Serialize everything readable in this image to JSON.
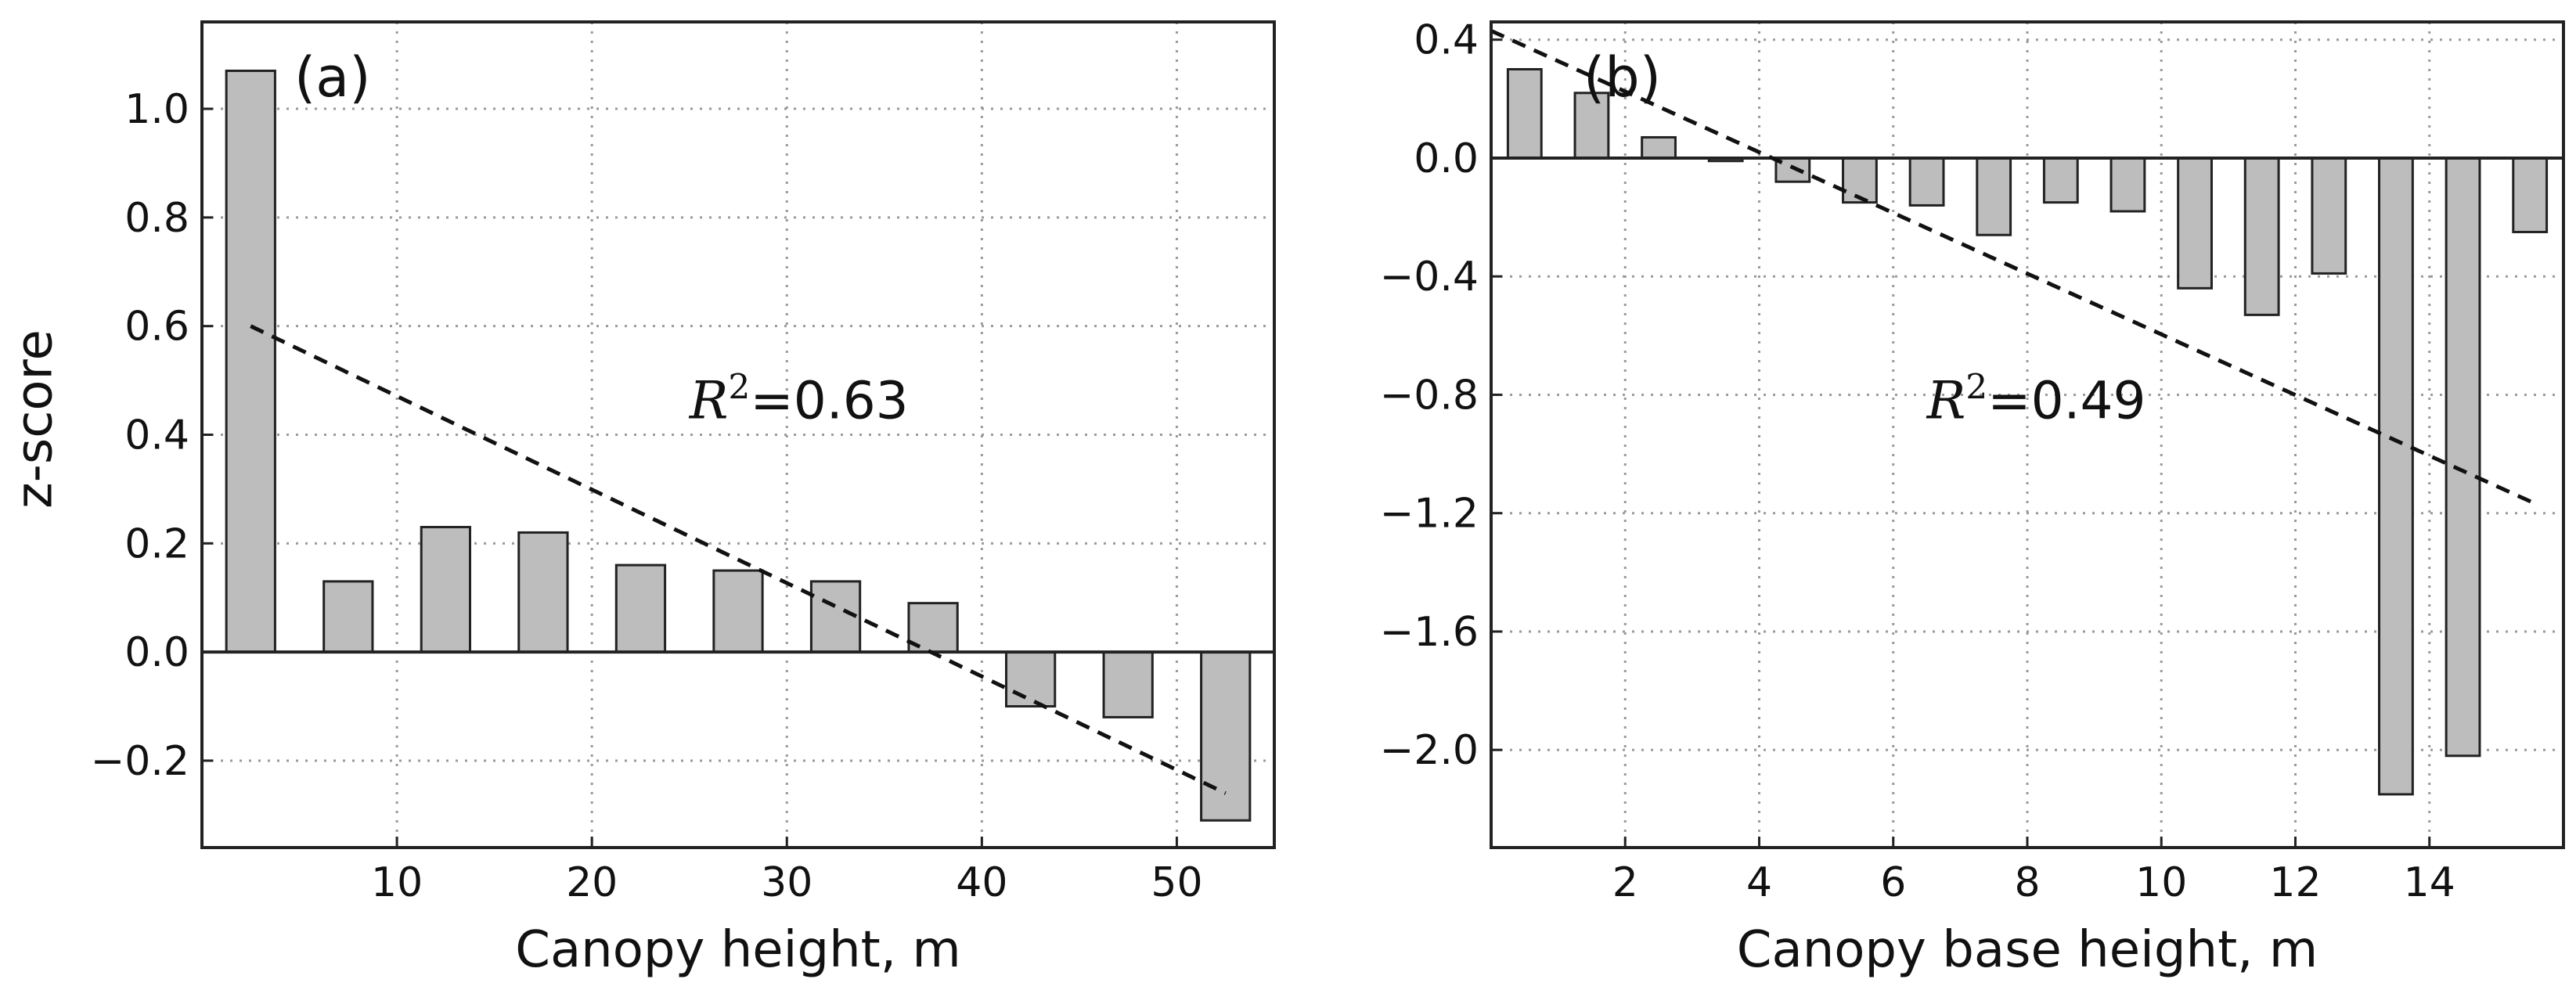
{
  "chart_data": [
    {
      "type": "bar",
      "panel_label": "(a)",
      "title": "",
      "xlabel": "Canopy height, m",
      "ylabel": "z-score",
      "xlim": [
        0,
        55
      ],
      "ylim": [
        -0.36,
        1.16
      ],
      "xticks": [
        10,
        20,
        30,
        40,
        50
      ],
      "xtick_labels": [
        "10",
        "20",
        "30",
        "40",
        "50"
      ],
      "yticks": [
        -0.2,
        0.0,
        0.2,
        0.4,
        0.6,
        0.8,
        1.0
      ],
      "ytick_labels": [
        "−0.2",
        "0.0",
        "0.2",
        "0.4",
        "0.6",
        "0.8",
        "1.0"
      ],
      "bar_width": 2.5,
      "x": [
        2.5,
        7.5,
        12.5,
        17.5,
        22.5,
        27.5,
        32.5,
        37.5,
        42.5,
        47.5,
        52.5
      ],
      "values": [
        1.07,
        0.13,
        0.23,
        0.22,
        0.16,
        0.15,
        0.13,
        0.09,
        -0.1,
        -0.12,
        -0.31
      ],
      "trendline": {
        "x": [
          2.5,
          52.5
        ],
        "y": [
          0.6,
          -0.26
        ]
      },
      "annotation": {
        "r_label": "R",
        "r_exp": "2",
        "text": "=0.63",
        "x": 25,
        "y": 0.43
      },
      "grid": true
    },
    {
      "type": "bar",
      "panel_label": "(b)",
      "title": "",
      "xlabel": "Canopy base height, m",
      "ylabel": "",
      "xlim": [
        0,
        16
      ],
      "ylim": [
        -2.33,
        0.46
      ],
      "xticks": [
        2,
        4,
        6,
        8,
        10,
        12,
        14
      ],
      "xtick_labels": [
        "2",
        "4",
        "6",
        "8",
        "10",
        "12",
        "14"
      ],
      "yticks": [
        -2.0,
        -1.6,
        -1.2,
        -0.8,
        -0.4,
        0.0,
        0.4
      ],
      "ytick_labels": [
        "−2.0",
        "−1.6",
        "−1.2",
        "−0.8",
        "−0.4",
        "0.0",
        "0.4"
      ],
      "bar_width": 0.5,
      "x": [
        0.5,
        1.5,
        2.5,
        3.5,
        4.5,
        5.5,
        6.5,
        7.5,
        8.5,
        9.5,
        10.5,
        11.5,
        12.5,
        13.5,
        14.5,
        15.5
      ],
      "values": [
        0.3,
        0.22,
        0.07,
        -0.01,
        -0.08,
        -0.15,
        -0.16,
        -0.26,
        -0.15,
        -0.18,
        -0.44,
        -0.53,
        -0.39,
        -2.15,
        -2.02,
        -0.25
      ],
      "trendline": {
        "x": [
          0.0,
          15.6
        ],
        "y": [
          0.43,
          -1.17
        ]
      },
      "annotation": {
        "r_label": "R",
        "r_exp": "2",
        "text": "=0.49",
        "x": 6.5,
        "y": -0.88
      },
      "grid": true
    }
  ]
}
